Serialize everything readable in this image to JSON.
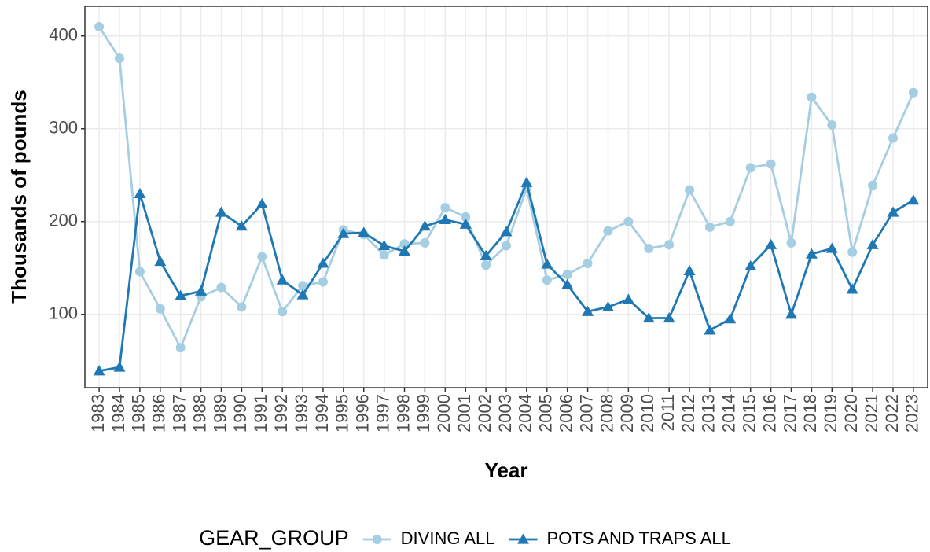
{
  "chart_data": {
    "type": "line",
    "x_label": "Year",
    "y_label": "Thousands of pounds",
    "legend_title": "GEAR_GROUP",
    "legend_position": "bottom",
    "grid": true,
    "categories": [
      "1983",
      "1984",
      "1985",
      "1986",
      "1987",
      "1988",
      "1989",
      "1990",
      "1991",
      "1992",
      "1993",
      "1994",
      "1995",
      "1996",
      "1997",
      "1998",
      "1999",
      "2000",
      "2001",
      "2002",
      "2003",
      "2004",
      "2005",
      "2006",
      "2007",
      "2008",
      "2009",
      "2010",
      "2011",
      "2012",
      "2013",
      "2014",
      "2015",
      "2016",
      "2017",
      "2018",
      "2019",
      "2020",
      "2021",
      "2022",
      "2023"
    ],
    "series": [
      {
        "name": "DIVING ALL",
        "color": "#a6cee3",
        "marker": "circle",
        "values": [
          410,
          376,
          146,
          106,
          64,
          119,
          129,
          108,
          162,
          103,
          131,
          135,
          191,
          186,
          164,
          176,
          177,
          215,
          205,
          153,
          174,
          236,
          137,
          143,
          155,
          190,
          200,
          171,
          175,
          234,
          194,
          200,
          258,
          262,
          177,
          334,
          304,
          167,
          239,
          290,
          339
        ]
      },
      {
        "name": "POTS AND TRAPS ALL",
        "color": "#1f78b4",
        "marker": "triangle",
        "values": [
          39,
          43,
          230,
          157,
          120,
          125,
          210,
          195,
          219,
          137,
          121,
          155,
          187,
          188,
          174,
          168,
          195,
          202,
          197,
          163,
          189,
          242,
          154,
          132,
          103,
          108,
          116,
          96,
          96,
          147,
          83,
          95,
          152,
          175,
          100,
          165,
          171,
          127,
          175,
          210,
          223
        ]
      }
    ],
    "ylim": [
      21,
      432
    ],
    "yticks": [
      100,
      200,
      300,
      400
    ]
  }
}
